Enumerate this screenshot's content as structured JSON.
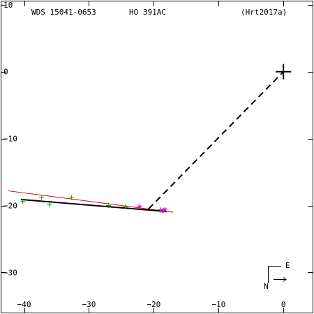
{
  "header": {
    "wds": "WDS 15041-0653",
    "discoverer": "HO  391AC",
    "reference": "(Hrt2017a)"
  },
  "chart_data": {
    "type": "scatter",
    "title": "",
    "xlabel": "",
    "ylabel": "",
    "xlim": [
      -43.5,
      4.5
    ],
    "ylim": [
      -36,
      10.5
    ],
    "x_ticks": [
      -40,
      -30,
      -20,
      -10,
      0
    ],
    "x_tick_labels": [
      "−40",
      "−30",
      "−20",
      "−10",
      "0"
    ],
    "y_ticks": [
      10,
      0,
      -10,
      -20,
      -30
    ],
    "y_tick_labels": [
      "10",
      "0",
      "−10",
      "−20",
      "−30"
    ],
    "grid": false,
    "primary_star": {
      "x": 0,
      "y": 0
    },
    "observations_green": [
      {
        "x": -40.2,
        "y": -19.4
      },
      {
        "x": -37.3,
        "y": -18.8
      },
      {
        "x": -36.1,
        "y": -19.9
      },
      {
        "x": -32.7,
        "y": -18.8
      },
      {
        "x": -27.0,
        "y": -20.0
      },
      {
        "x": -24.4,
        "y": -20.2
      },
      {
        "x": -19.0,
        "y": -20.6
      }
    ],
    "observations_magenta": [
      {
        "x": -22.2,
        "y": -20.2
      },
      {
        "x": -18.7,
        "y": -20.8
      },
      {
        "x": -18.3,
        "y": -20.6
      }
    ],
    "fit_line_black": {
      "x": [
        -40.5,
        -18.0
      ],
      "y": [
        -19.1,
        -20.9
      ]
    },
    "fit_line_red": {
      "x": [
        -42.5,
        -17.0
      ],
      "y": [
        -17.8,
        -21.0
      ]
    },
    "dashed_connector": {
      "x": [
        -20.8,
        0
      ],
      "y": [
        -20.5,
        0
      ]
    },
    "compass": {
      "east": "E",
      "north": "N"
    }
  }
}
